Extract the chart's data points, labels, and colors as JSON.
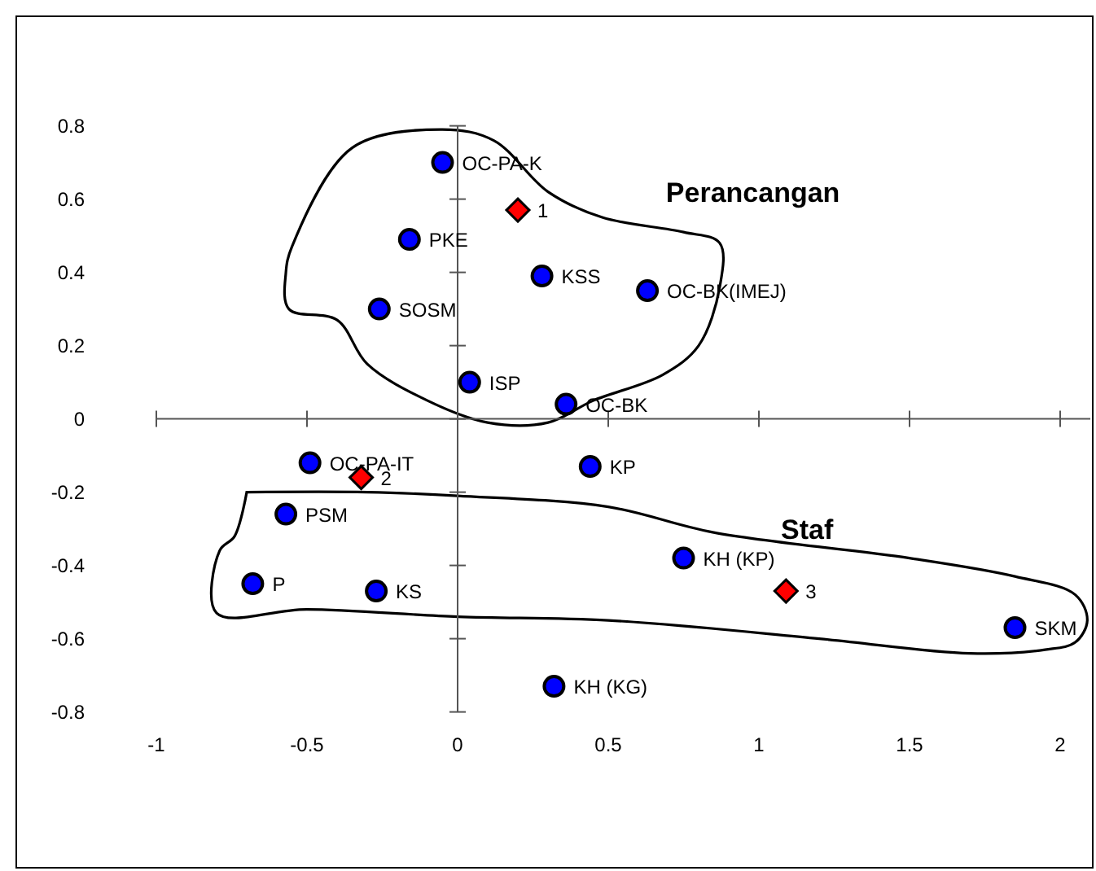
{
  "chart_data": {
    "type": "scatter",
    "xlim": [
      -1,
      2.1
    ],
    "ylim": [
      -0.8,
      0.8
    ],
    "xticks": [
      -1,
      -0.5,
      0,
      0.5,
      1,
      1.5,
      2
    ],
    "yticks": [
      -0.8,
      -0.6,
      -0.4,
      -0.2,
      0,
      0.2,
      0.4,
      0.6,
      0.8
    ],
    "series": [
      {
        "color": "#0000ff",
        "marker": "circle",
        "x": [
          -0.05,
          -0.16,
          0.28,
          0.63,
          -0.26,
          0.04,
          0.36,
          -0.49,
          0.44,
          -0.57,
          -0.68,
          -0.27,
          0.32,
          0.75,
          1.85
        ],
        "values": [
          0.7,
          0.49,
          0.39,
          0.35,
          0.3,
          0.1,
          0.04,
          -0.12,
          -0.13,
          -0.26,
          -0.45,
          -0.47,
          -0.73,
          -0.38,
          -0.57
        ]
      },
      {
        "color": "#ff0000",
        "marker": "diamond",
        "x": [
          0.2,
          -0.32,
          1.09
        ],
        "values": [
          0.57,
          -0.16,
          -0.47
        ]
      }
    ],
    "annotations": [
      {
        "text": "OC-PA-K",
        "x": -0.05,
        "y": 0.7
      },
      {
        "text": "PKE",
        "x": -0.16,
        "y": 0.49
      },
      {
        "text": "KSS",
        "x": 0.28,
        "y": 0.39
      },
      {
        "text": "OC-BK(IMEJ)",
        "x": 0.63,
        "y": 0.35
      },
      {
        "text": "SOSM",
        "x": -0.26,
        "y": 0.3
      },
      {
        "text": "ISP",
        "x": 0.04,
        "y": 0.1
      },
      {
        "text": "OC-BK",
        "x": 0.36,
        "y": 0.04
      },
      {
        "text": "OC-PA-IT",
        "x": -0.49,
        "y": -0.12
      },
      {
        "text": "KP",
        "x": 0.44,
        "y": -0.13
      },
      {
        "text": "PSM",
        "x": -0.57,
        "y": -0.26
      },
      {
        "text": "P",
        "x": -0.68,
        "y": -0.45
      },
      {
        "text": "KS",
        "x": -0.27,
        "y": -0.47
      },
      {
        "text": "KH (KG)",
        "x": 0.32,
        "y": -0.73
      },
      {
        "text": "KH (KP)",
        "x": 0.75,
        "y": -0.38
      },
      {
        "text": "SKM",
        "x": 1.85,
        "y": -0.57
      },
      {
        "text": "1",
        "x": 0.2,
        "y": 0.57
      },
      {
        "text": "2",
        "x": -0.32,
        "y": -0.16
      },
      {
        "text": "3",
        "x": 1.09,
        "y": -0.47
      },
      "Perancangan",
      "Staf"
    ]
  }
}
